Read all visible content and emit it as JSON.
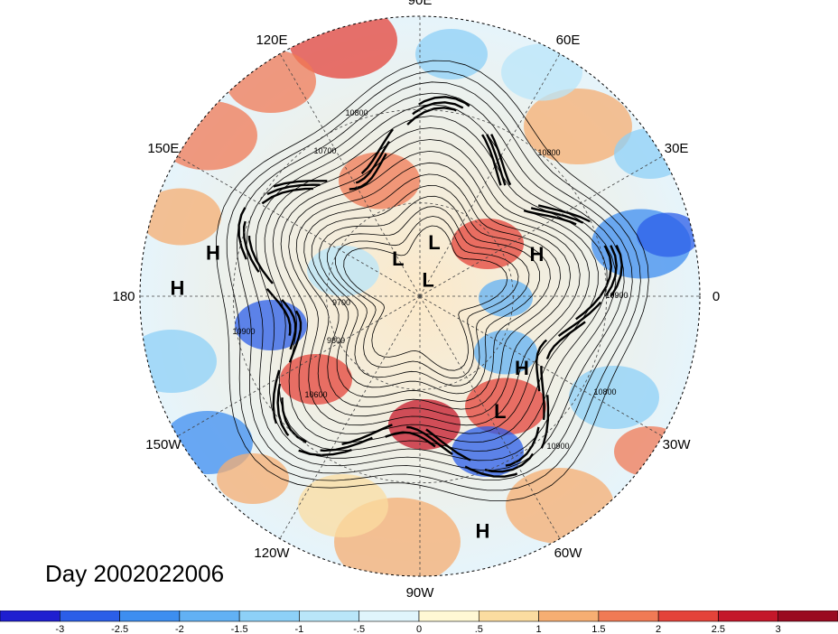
{
  "title": "Day 2002022006",
  "longitude_labels": [
    "90E",
    "60E",
    "30E",
    "0",
    "30W",
    "60W",
    "90W",
    "120W",
    "150W",
    "180",
    "150E",
    "120E"
  ],
  "pressure_centers": [
    {
      "type": "H",
      "lon": 20,
      "lat": 50
    },
    {
      "type": "H",
      "lon": -35,
      "lat": 50
    },
    {
      "type": "H",
      "lon": -75,
      "lat": 12
    },
    {
      "type": "H",
      "lon": 168,
      "lat": 22
    },
    {
      "type": "H",
      "lon": 178,
      "lat": 12
    },
    {
      "type": "L",
      "lon": 120,
      "lat": 76
    },
    {
      "type": "L",
      "lon": 75,
      "lat": 72
    },
    {
      "type": "L",
      "lon": 64,
      "lat": 84
    },
    {
      "type": "L",
      "lon": -55,
      "lat": 45
    }
  ],
  "contour_labels": [
    "10800",
    "10700",
    "10800",
    "10900",
    "10900",
    "10900",
    "10800",
    "9700",
    "9800",
    "10600"
  ],
  "colorbar": {
    "ticks": [
      "-3",
      "-2.5",
      "-2",
      "-1.5",
      "-1",
      "-.5",
      "0",
      ".5",
      "1",
      "1.5",
      "2",
      "2.5",
      "3"
    ],
    "colors": [
      "#1f1fd0",
      "#2b5ee8",
      "#3d8ef0",
      "#62b1f4",
      "#8dd0f7",
      "#b9e6f9",
      "#e0f5fc",
      "#fff8d4",
      "#fbdca0",
      "#f6ae72",
      "#f07a55",
      "#e4433a",
      "#c4172a",
      "#9a0a20"
    ]
  }
}
